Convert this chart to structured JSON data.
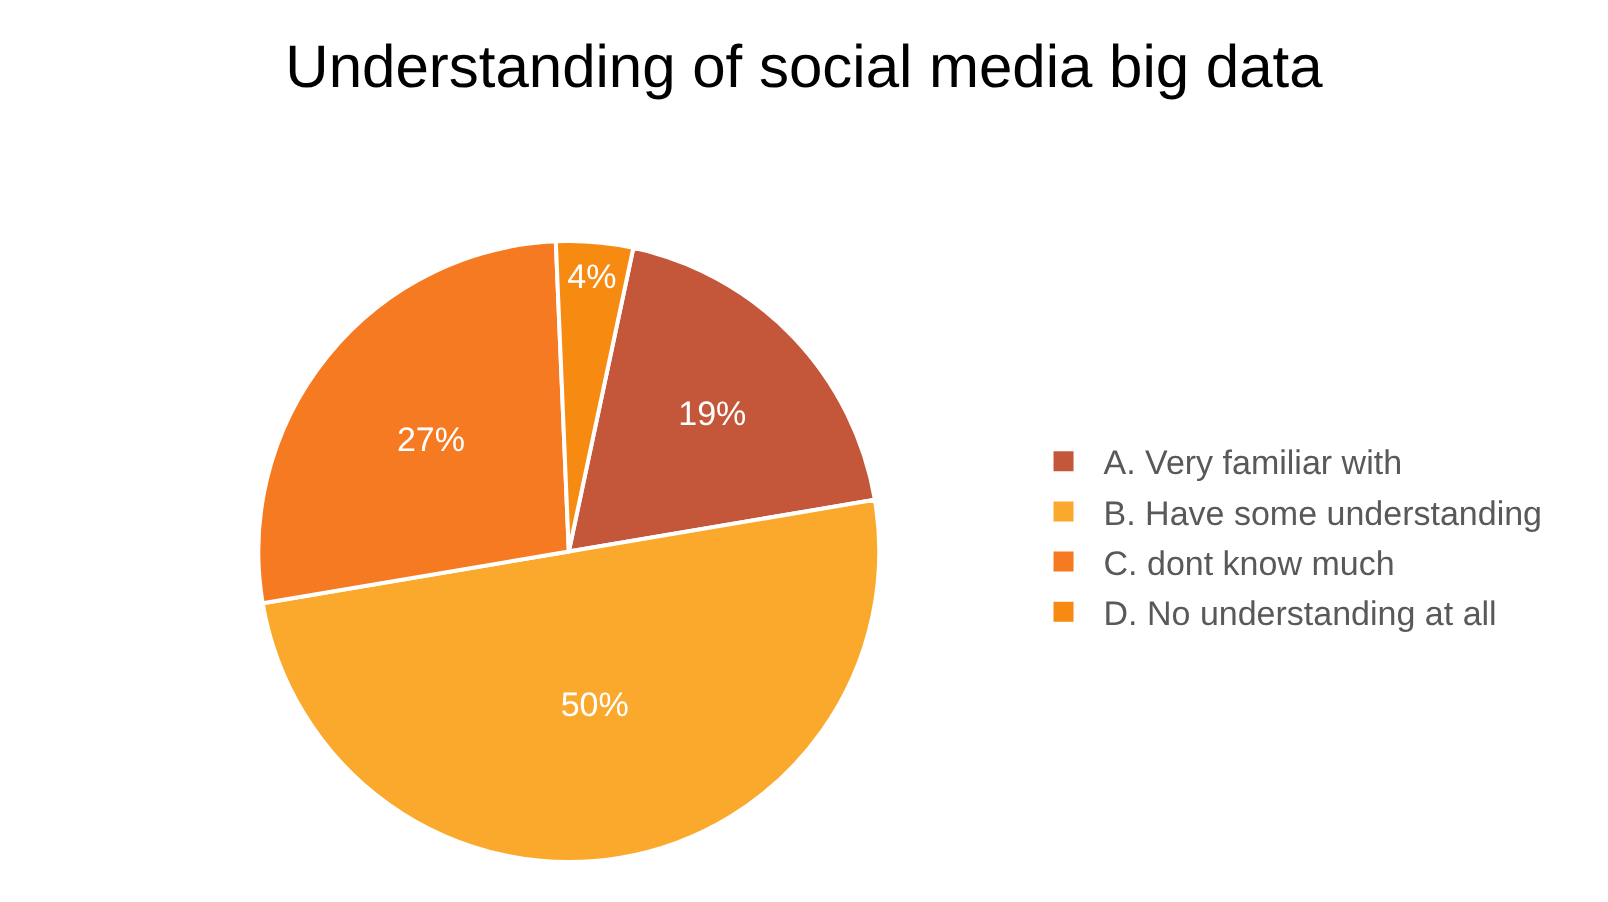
{
  "chart_data": {
    "type": "pie",
    "title": "Understanding of social media big data",
    "categories": [
      "A. Very familiar with",
      "B. Have some understanding",
      "C. dont know much",
      "D. No understanding at all"
    ],
    "values": [
      19,
      50,
      27,
      4
    ],
    "value_labels": [
      "19%",
      "50%",
      "27%",
      "4%"
    ],
    "colors": [
      "#c4573a",
      "#fba92c",
      "#f57a22",
      "#f78a10"
    ],
    "legend": "right"
  }
}
